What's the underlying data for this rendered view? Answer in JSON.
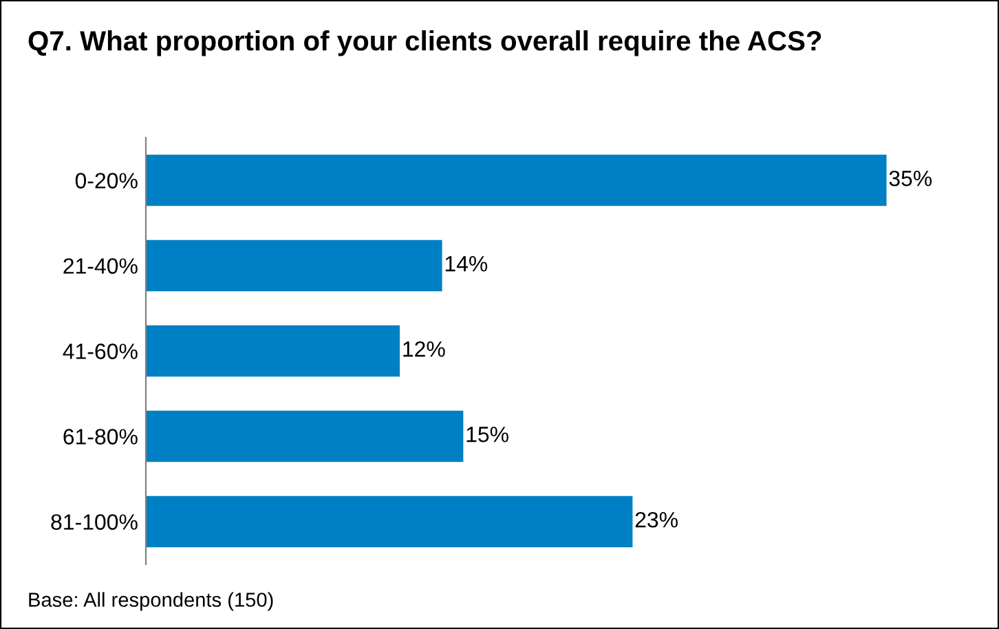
{
  "chart_data": {
    "type": "bar",
    "orientation": "horizontal",
    "title": "Q7. What proportion of your clients overall require the ACS?",
    "categories": [
      "0-20%",
      "21-40%",
      "41-60%",
      "61-80%",
      "81-100%"
    ],
    "values": [
      35,
      14,
      12,
      15,
      23
    ],
    "value_labels": [
      "35%",
      "14%",
      "12%",
      "15%",
      "23%"
    ],
    "color": "#0080c4",
    "grid": false,
    "legend": false,
    "annotations": [
      "Base: All respondents (150)"
    ]
  }
}
